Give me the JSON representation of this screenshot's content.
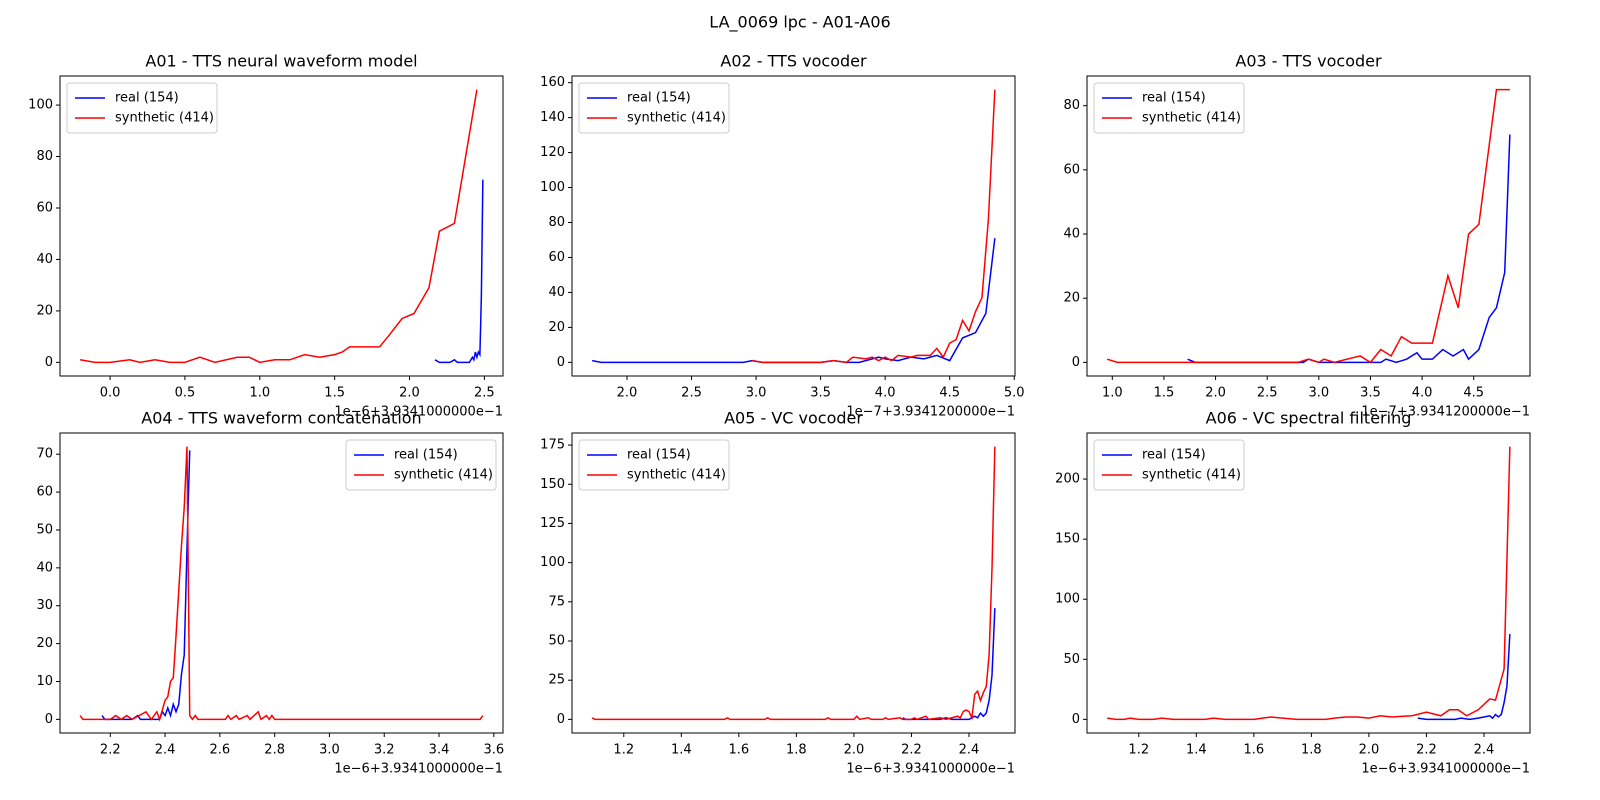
{
  "title": "LA_0069 lpc - A01-A06",
  "chart_data": [
    {
      "type": "line",
      "title": "A01 - TTS neural waveform model",
      "offset_label": "1e−6+3.9341000000e−1",
      "legend": "upper left",
      "xlim": [
        -0.3345,
        2.6245
      ],
      "ylim": [
        -5.3,
        111.3
      ],
      "xticks": [
        {
          "value": 0,
          "label": "0.0"
        },
        0.5,
        {
          "value": 1,
          "label": "1.0"
        },
        1.5,
        {
          "value": 2,
          "label": "2.0"
        },
        2.5
      ],
      "yticks": [
        0,
        20,
        40,
        60,
        80,
        100
      ],
      "series": [
        {
          "name": "real (154)",
          "color": "#0000ff",
          "x": [
            2.17,
            2.2,
            2.27,
            2.3,
            2.32,
            2.4,
            2.42,
            2.43,
            2.44,
            2.45,
            2.46,
            2.47,
            2.475,
            2.48,
            2.49
          ],
          "values": [
            1,
            0,
            0,
            1,
            0,
            0,
            2,
            1,
            4,
            2,
            4,
            3,
            14,
            26,
            71
          ]
        },
        {
          "name": "synthetic (414)",
          "color": "#ff0000",
          "x": [
            -0.2,
            -0.1,
            0,
            0.13,
            0.2,
            0.3,
            0.4,
            0.5,
            0.6,
            0.7,
            0.85,
            0.93,
            1.0,
            1.1,
            1.2,
            1.3,
            1.4,
            1.5,
            1.55,
            1.6,
            1.8,
            1.87,
            1.95,
            2.03,
            2.13,
            2.2,
            2.3,
            2.45
          ],
          "values": [
            1,
            0,
            0,
            1,
            0,
            1,
            0,
            0,
            2,
            0,
            2,
            2,
            0,
            1,
            1,
            3,
            2,
            3,
            4,
            6,
            6,
            11,
            17,
            19,
            29,
            51,
            54,
            106
          ]
        }
      ]
    },
    {
      "type": "line",
      "title": "A02 - TTS vocoder",
      "offset_label": "1e−7+3.9341200000e−1",
      "legend": "upper left",
      "xlim": [
        1.574,
        5.006
      ],
      "ylim": [
        -7.8,
        163.8
      ],
      "xticks": [
        {
          "value": 2,
          "label": "2.0"
        },
        2.5,
        {
          "value": 3,
          "label": "3.0"
        },
        3.5,
        {
          "value": 4,
          "label": "4.0"
        },
        4.5,
        {
          "value": 5,
          "label": "5.0"
        }
      ],
      "yticks": [
        0,
        20,
        40,
        60,
        80,
        100,
        120,
        140,
        160
      ],
      "series": [
        {
          "name": "real (154)",
          "color": "#0000ff",
          "x": [
            1.73,
            1.8,
            2.9,
            2.97,
            3.05,
            3.5,
            3.6,
            3.7,
            3.8,
            3.9,
            3.95,
            4.0,
            4.1,
            4.2,
            4.3,
            4.4,
            4.5,
            4.6,
            4.7,
            4.78,
            4.85
          ],
          "values": [
            1,
            0,
            0,
            1,
            0,
            0,
            1,
            0,
            0,
            2,
            3,
            2,
            1,
            3,
            2,
            4,
            1,
            14,
            17,
            28,
            71
          ]
        },
        {
          "name": "synthetic (414)",
          "color": "#ff0000",
          "x": [
            2.97,
            3.05,
            3.5,
            3.6,
            3.7,
            3.75,
            3.85,
            3.9,
            3.95,
            4.0,
            4.05,
            4.1,
            4.2,
            4.25,
            4.35,
            4.4,
            4.45,
            4.5,
            4.55,
            4.6,
            4.65,
            4.7,
            4.75,
            4.8,
            4.85
          ],
          "values": [
            1,
            0,
            0,
            1,
            0,
            3,
            2,
            3,
            1,
            3,
            1,
            4,
            3,
            4,
            4,
            8,
            3,
            11,
            13,
            24,
            18,
            29,
            37,
            82,
            156
          ]
        }
      ]
    },
    {
      "type": "line",
      "title": "A03 - TTS vocoder",
      "offset_label": "1e−7+3.9341200000e−1",
      "legend": "upper left",
      "xlim": [
        0.755,
        5.045
      ],
      "ylim": [
        -4.25,
        89.25
      ],
      "xticks": [
        {
          "value": 1,
          "label": "1.0"
        },
        1.5,
        {
          "value": 2,
          "label": "2.0"
        },
        2.5,
        {
          "value": 3,
          "label": "3.0"
        },
        3.5,
        {
          "value": 4,
          "label": "4.0"
        },
        4.5
      ],
      "yticks": [
        0,
        20,
        40,
        60,
        80
      ],
      "series": [
        {
          "name": "real (154)",
          "color": "#0000ff",
          "x": [
            1.73,
            1.8,
            2.85,
            2.9,
            3.0,
            3.6,
            3.65,
            3.75,
            3.85,
            3.95,
            4.0,
            4.1,
            4.2,
            4.3,
            4.4,
            4.45,
            4.55,
            4.65,
            4.72,
            4.8,
            4.85
          ],
          "values": [
            1,
            0,
            0,
            1,
            0,
            0,
            1,
            0,
            1,
            3,
            1,
            1,
            4,
            2,
            4,
            1,
            4,
            14,
            17,
            28,
            71
          ]
        },
        {
          "name": "synthetic (414)",
          "color": "#ff0000",
          "x": [
            0.95,
            1.05,
            2.8,
            2.9,
            3.0,
            3.05,
            3.15,
            3.4,
            3.5,
            3.6,
            3.7,
            3.8,
            3.9,
            4.1,
            4.25,
            4.35,
            4.45,
            4.55,
            4.72,
            4.85
          ],
          "values": [
            1,
            0,
            0,
            1,
            0,
            1,
            0,
            2,
            0,
            4,
            2,
            8,
            6,
            6,
            27,
            17,
            40,
            43,
            85,
            85
          ]
        }
      ]
    },
    {
      "type": "line",
      "title": "A04 - TTS waveform concatenation",
      "offset_label": "1e−6+3.9341000000e−1",
      "legend": "upper right",
      "xlim": [
        2.0165,
        3.6335
      ],
      "ylim": [
        -3.6,
        75.6
      ],
      "xticks": [
        2.2,
        2.4,
        2.6,
        2.8,
        {
          "value": 3,
          "label": "3.0"
        },
        3.2,
        3.4,
        3.6
      ],
      "yticks": [
        0,
        10,
        20,
        30,
        40,
        50,
        60,
        70
      ],
      "series": [
        {
          "name": "real (154)",
          "color": "#0000ff",
          "x": [
            2.17,
            2.18,
            2.28,
            2.3,
            2.31,
            2.38,
            2.39,
            2.4,
            2.41,
            2.42,
            2.43,
            2.44,
            2.45,
            2.46,
            2.47,
            2.48,
            2.49
          ],
          "values": [
            1,
            0,
            0,
            1,
            0,
            0,
            2,
            1,
            3,
            1,
            4,
            2,
            4,
            12,
            17,
            45,
            71
          ]
        },
        {
          "name": "synthetic (414)",
          "color": "#ff0000",
          "x": [
            2.09,
            2.1,
            2.2,
            2.22,
            2.24,
            2.26,
            2.28,
            2.33,
            2.35,
            2.37,
            2.38,
            2.4,
            2.41,
            2.42,
            2.43,
            2.44,
            2.45,
            2.46,
            2.47,
            2.48,
            2.49,
            2.5,
            2.51,
            2.52,
            2.62,
            2.63,
            2.64,
            2.66,
            2.67,
            2.7,
            2.71,
            2.74,
            2.75,
            2.77,
            2.78,
            2.79,
            2.8,
            3.55,
            3.56
          ],
          "values": [
            1,
            0,
            0,
            1,
            0,
            1,
            0,
            2,
            0,
            2,
            0,
            5,
            6,
            10,
            11,
            22,
            34,
            46,
            56,
            72,
            1,
            0,
            1,
            0,
            0,
            1,
            0,
            1,
            0,
            1,
            0,
            2,
            0,
            1,
            0,
            1,
            0,
            0,
            1
          ]
        }
      ]
    },
    {
      "type": "line",
      "title": "A05 - VC vocoder",
      "offset_label": "1e−6+3.9341000000e−1",
      "legend": "upper left",
      "xlim": [
        1.02,
        2.56
      ],
      "ylim": [
        -8.7,
        182.7
      ],
      "xticks": [
        1.2,
        1.4,
        1.6,
        1.8,
        {
          "value": 2,
          "label": "2.0"
        },
        2.2,
        2.4
      ],
      "yticks": [
        0,
        25,
        50,
        75,
        100,
        125,
        150,
        175
      ],
      "series": [
        {
          "name": "real (154)",
          "color": "#0000ff",
          "x": [
            2.17,
            2.18,
            2.3,
            2.32,
            2.34,
            2.4,
            2.42,
            2.43,
            2.44,
            2.45,
            2.46,
            2.47,
            2.48,
            2.49
          ],
          "values": [
            1,
            0,
            0,
            1,
            0,
            0,
            2,
            1,
            4,
            2,
            4,
            12,
            28,
            71
          ]
        },
        {
          "name": "synthetic (414)",
          "color": "#ff0000",
          "x": [
            1.09,
            1.1,
            1.55,
            1.56,
            1.57,
            1.69,
            1.7,
            1.71,
            1.9,
            1.91,
            1.92,
            2.0,
            2.01,
            2.02,
            2.05,
            2.06,
            2.1,
            2.11,
            2.12,
            2.16,
            2.17,
            2.2,
            2.21,
            2.22,
            2.25,
            2.26,
            2.3,
            2.32,
            2.36,
            2.37,
            2.38,
            2.39,
            2.4,
            2.41,
            2.42,
            2.43,
            2.44,
            2.45,
            2.46,
            2.47,
            2.48,
            2.49
          ],
          "values": [
            1,
            0,
            0,
            1,
            0,
            0,
            1,
            0,
            0,
            1,
            0,
            0,
            2,
            0,
            1,
            0,
            0,
            1,
            0,
            1,
            0,
            0,
            1,
            0,
            2,
            0,
            1,
            0,
            2,
            1,
            5,
            6,
            5,
            1,
            16,
            18,
            12,
            17,
            21,
            41,
            96,
            174
          ]
        }
      ]
    },
    {
      "type": "line",
      "title": "A06 - VC spectral filtering",
      "offset_label": "1e−6+3.9341000000e−1",
      "legend": "upper left",
      "xlim": [
        1.02,
        2.56
      ],
      "ylim": [
        -11.35,
        238.35
      ],
      "xticks": [
        1.2,
        1.4,
        1.6,
        1.8,
        {
          "value": 2,
          "label": "2.0"
        },
        2.2,
        2.4
      ],
      "yticks": [
        0,
        50,
        100,
        150,
        200
      ],
      "series": [
        {
          "name": "real (154)",
          "color": "#0000ff",
          "x": [
            2.17,
            2.2,
            2.3,
            2.32,
            2.35,
            2.38,
            2.4,
            2.42,
            2.43,
            2.44,
            2.45,
            2.46,
            2.47,
            2.48,
            2.49
          ],
          "values": [
            1,
            0,
            0,
            1,
            0,
            1,
            2,
            3,
            1,
            4,
            2,
            4,
            14,
            28,
            71
          ]
        },
        {
          "name": "synthetic (414)",
          "color": "#ff0000",
          "x": [
            1.09,
            1.12,
            1.15,
            1.17,
            1.2,
            1.25,
            1.28,
            1.32,
            1.43,
            1.46,
            1.5,
            1.6,
            1.63,
            1.66,
            1.7,
            1.75,
            1.85,
            1.88,
            1.92,
            1.96,
            2.0,
            2.04,
            2.08,
            2.15,
            2.2,
            2.25,
            2.28,
            2.31,
            2.34,
            2.38,
            2.42,
            2.44,
            2.47,
            2.49
          ],
          "values": [
            1,
            0,
            0,
            1,
            0,
            0,
            1,
            0,
            0,
            1,
            0,
            0,
            1,
            2,
            1,
            0,
            0,
            1,
            2,
            2,
            1,
            3,
            2,
            3,
            6,
            3,
            8,
            8,
            3,
            8,
            17,
            16,
            42,
            227
          ]
        }
      ]
    }
  ]
}
